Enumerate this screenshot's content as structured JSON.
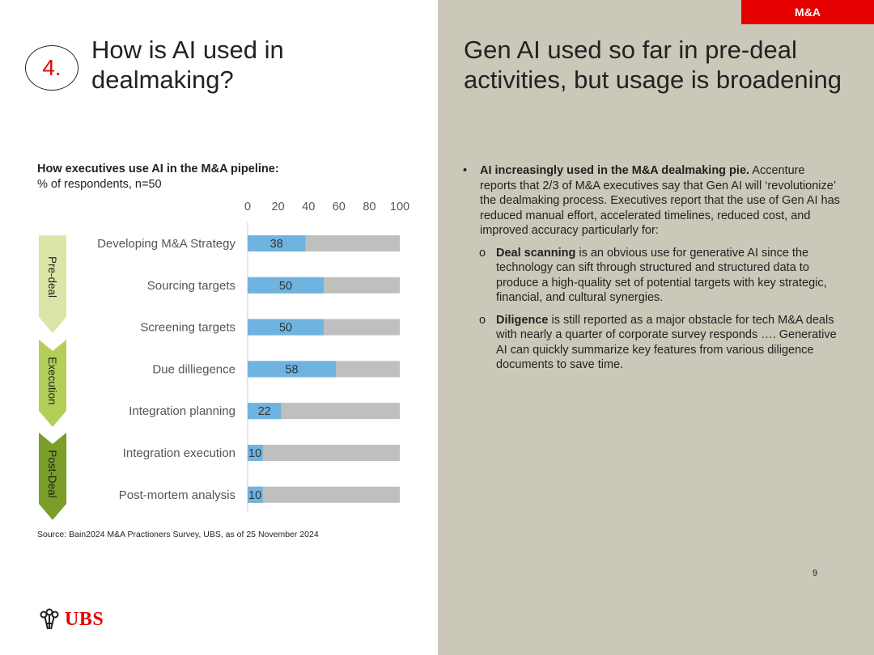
{
  "header": {
    "tag": "M&A",
    "section_number": "4.",
    "left_title": "How is AI used in dealmaking?",
    "right_title": "Gen AI used so far in pre-deal activities, but usage is broadening"
  },
  "colors": {
    "accent": "#e60000",
    "bar": "#6fb3e0",
    "remainder": "#bfbfbf",
    "panel": "#cbc7b9",
    "phase_light": "#d9e6a7",
    "phase_mid": "#b3cf58",
    "phase_dark": "#7a9e28"
  },
  "chart_data": {
    "type": "bar",
    "orientation": "horizontal",
    "stacked": true,
    "title": "How executives use AI in the M&A pipeline:",
    "subtitle": "% of respondents, n=50",
    "categories": [
      "Developing M&A Strategy",
      "Sourcing targets",
      "Screening targets",
      "Due dilliegence",
      "Integration planning",
      "Integration execution",
      "Post-mortem analysis"
    ],
    "values": [
      38,
      50,
      50,
      58,
      22,
      10,
      10
    ],
    "xlim": [
      0,
      100
    ],
    "xticks": [
      "0",
      "20",
      "40",
      "60",
      "80",
      "100"
    ],
    "grid": false,
    "phases": [
      "Pre-deal",
      "Execution",
      "Post-Deal"
    ]
  },
  "source": "Source: Bain2024 M&A Practioners Survey, UBS, as of 25 November 2024",
  "logo_text": "UBS",
  "page_number": "9",
  "bullets": {
    "main_marker": "•",
    "main_bold": "AI increasingly used in the M&A dealmaking pie.",
    "main_text": "Accenture reports that 2/3 of M&A executives say that Gen AI will ‘revolutionize’ the dealmaking process. Executives report that the use of Gen AI has reduced manual effort, accelerated timelines, reduced cost, and improved accuracy particularly for:",
    "sub_marker": "o",
    "subs": [
      {
        "bold": "Deal scanning",
        "text": " is an obvious use for generative AI since the technology can sift through structured and structured data to produce a high-quality set of potential targets with key strategic, financial, and cultural synergies."
      },
      {
        "bold": "Diligence",
        "text": " is still reported as a major obstacle for tech M&A deals with nearly a quarter of corporate survey responds …. Generative AI can quickly summarize key features from various diligence documents to save time."
      }
    ]
  }
}
